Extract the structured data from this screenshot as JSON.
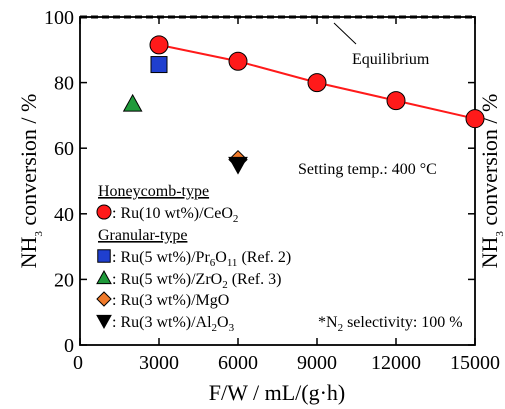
{
  "chart_data": {
    "type": "scatter",
    "xlabel": "F/W / mL/(g·h)",
    "ylabel_main": "NH",
    "ylabel_sub": "3",
    "ylabel_rest": " conversion / %",
    "xlim": [
      0,
      15000
    ],
    "ylim": [
      0,
      100
    ],
    "x_ticks": [
      0,
      3000,
      6000,
      9000,
      12000,
      15000
    ],
    "y_ticks": [
      0,
      20,
      40,
      60,
      80,
      100
    ],
    "grid": false,
    "equilibrium": {
      "label": "Equilibrium",
      "y": 100
    },
    "setting_note": "Setting temp.: 400 °C",
    "selectivity_note": {
      "prefix": "*N",
      "sub": "2",
      "rest": " selectivity: 100 %"
    },
    "legend_groups": {
      "honeycomb": "Honeycomb-type",
      "granular": "Granular-type"
    },
    "series": [
      {
        "id": "ru-ceo2",
        "marker": "circle",
        "color": "#ff1a1a",
        "line": true,
        "label_prefix": ": Ru(10 wt%)/CeO",
        "label_sub": "2",
        "label_suffix": "",
        "points": [
          {
            "x": 3000,
            "y": 91.5
          },
          {
            "x": 6000,
            "y": 86.5
          },
          {
            "x": 9000,
            "y": 80
          },
          {
            "x": 12000,
            "y": 74.5
          },
          {
            "x": 15000,
            "y": 69
          }
        ]
      },
      {
        "id": "ru-pr6o11",
        "marker": "square",
        "color": "#1f3fcf",
        "line": false,
        "label_prefix": ": Ru(5 wt%)/Pr",
        "label_sub": "6",
        "label_mid": "O",
        "label_sub2": "11",
        "label_suffix": " (Ref. 2)",
        "points": [
          {
            "x": 3000,
            "y": 85.5
          }
        ]
      },
      {
        "id": "ru-zro2",
        "marker": "triangle-up",
        "color": "#1f9a3a",
        "line": false,
        "label_prefix": ": Ru(5 wt%)/ZrO",
        "label_sub": "2",
        "label_suffix": " (Ref. 3)",
        "points": [
          {
            "x": 2000,
            "y": 73.5
          }
        ]
      },
      {
        "id": "ru-mgo",
        "marker": "diamond",
        "color": "#f07a2a",
        "line": false,
        "label_prefix": ": Ru(3 wt%)/MgO",
        "label_sub": "",
        "label_suffix": "",
        "points": [
          {
            "x": 6000,
            "y": 56.5
          }
        ]
      },
      {
        "id": "ru-al2o3",
        "marker": "triangle-down",
        "color": "#000000",
        "line": false,
        "label_prefix": ": Ru(3 wt%)/Al",
        "label_sub": "2",
        "label_mid": "O",
        "label_sub2": "3",
        "label_suffix": "",
        "points": [
          {
            "x": 6000,
            "y": 55
          }
        ]
      }
    ]
  }
}
